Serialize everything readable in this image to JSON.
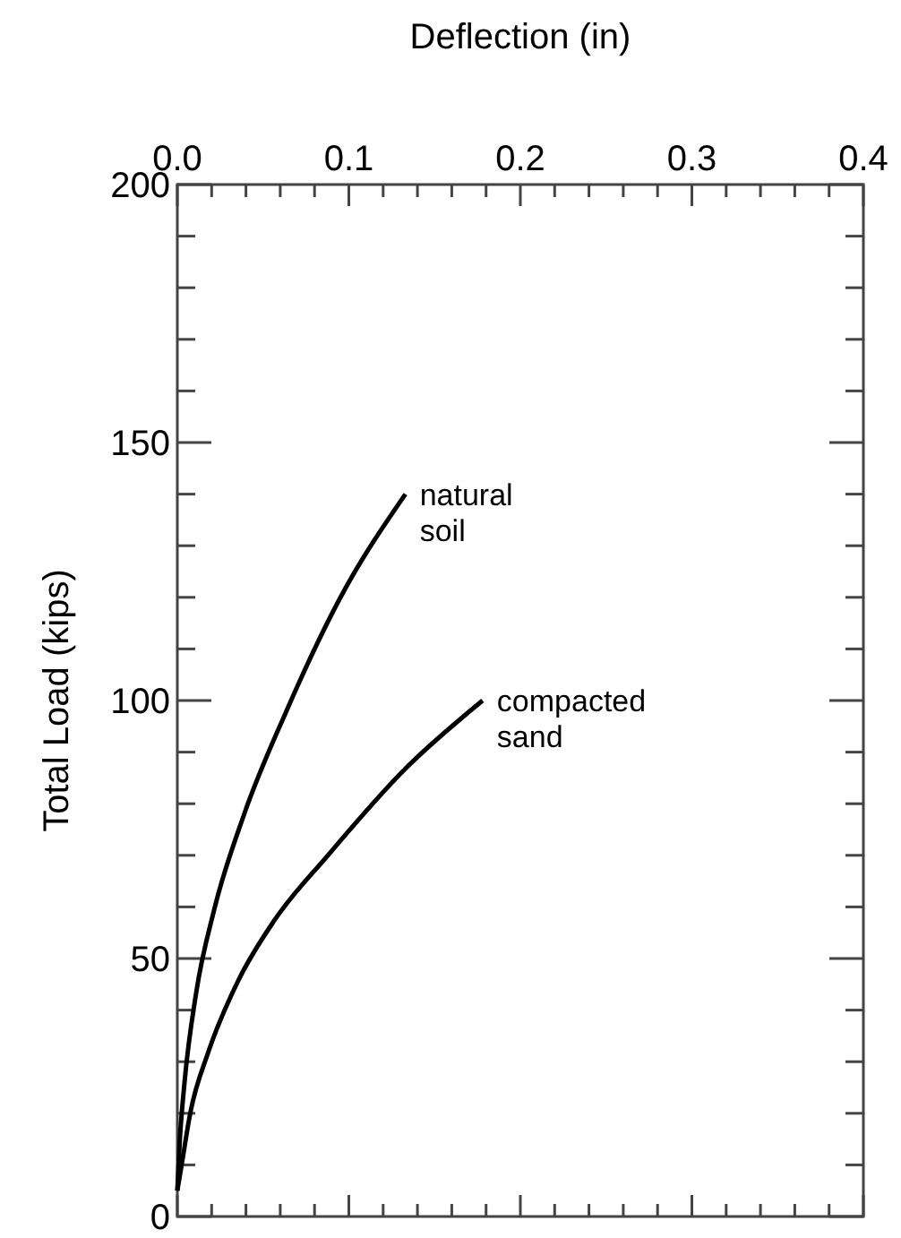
{
  "chart_data": {
    "type": "line",
    "xlabel": "Deflection (in)",
    "ylabel": "Total Load (kips)",
    "xlim": [
      0,
      0.4
    ],
    "ylim": [
      0,
      200
    ],
    "xticks": [
      {
        "value": 0,
        "label": "0.0"
      },
      {
        "value": 0.02,
        "label": null
      },
      {
        "value": 0.04,
        "label": null
      },
      {
        "value": 0.06,
        "label": null
      },
      {
        "value": 0.08,
        "label": null
      },
      {
        "value": 0.1,
        "label": "0.1"
      },
      {
        "value": 0.12,
        "label": null
      },
      {
        "value": 0.14,
        "label": null
      },
      {
        "value": 0.16,
        "label": null
      },
      {
        "value": 0.18,
        "label": null
      },
      {
        "value": 0.2,
        "label": "0.2"
      },
      {
        "value": 0.22,
        "label": null
      },
      {
        "value": 0.24,
        "label": null
      },
      {
        "value": 0.26,
        "label": null
      },
      {
        "value": 0.28,
        "label": null
      },
      {
        "value": 0.3,
        "label": "0.3"
      },
      {
        "value": 0.32,
        "label": null
      },
      {
        "value": 0.34,
        "label": null
      },
      {
        "value": 0.36,
        "label": null
      },
      {
        "value": 0.38,
        "label": null
      },
      {
        "value": 0.4,
        "label": "0.4"
      }
    ],
    "yticks": [
      0,
      {
        "value": 10,
        "label": null
      },
      {
        "value": 20,
        "label": null
      },
      {
        "value": 30,
        "label": null
      },
      {
        "value": 40,
        "label": null
      },
      50,
      {
        "value": 60,
        "label": null
      },
      {
        "value": 70,
        "label": null
      },
      {
        "value": 80,
        "label": null
      },
      {
        "value": 90,
        "label": null
      },
      100,
      {
        "value": 110,
        "label": null
      },
      {
        "value": 120,
        "label": null
      },
      {
        "value": 130,
        "label": null
      },
      {
        "value": 140,
        "label": null
      },
      150,
      {
        "value": 160,
        "label": null
      },
      {
        "value": 170,
        "label": null
      },
      {
        "value": 180,
        "label": null
      },
      {
        "value": 190,
        "label": null
      },
      200
    ],
    "grid": false,
    "series": [
      {
        "color": "#000000",
        "x": [
          0,
          0.0014,
          0.0042,
          0.011,
          0.0216,
          0.039,
          0.0634,
          0.0948,
          0.133
        ],
        "values": [
          5,
          14.5,
          26,
          43.4,
          59.6,
          78,
          97.8,
          119.8,
          140
        ]
      },
      {
        "color": "#000000",
        "x": [
          0,
          0.0024,
          0.0077,
          0.018,
          0.0355,
          0.0564,
          0.0878,
          0.133,
          0.178
        ],
        "values": [
          5,
          9.8,
          20.3,
          31.8,
          45.7,
          57.3,
          70,
          86.8,
          100
        ]
      }
    ],
    "annotations": [
      {
        "text": "natural\nsoil",
        "x": 0.133,
        "y": 140
      },
      {
        "text": "compacted\nsand",
        "x": 0.178,
        "y": 100
      }
    ]
  }
}
